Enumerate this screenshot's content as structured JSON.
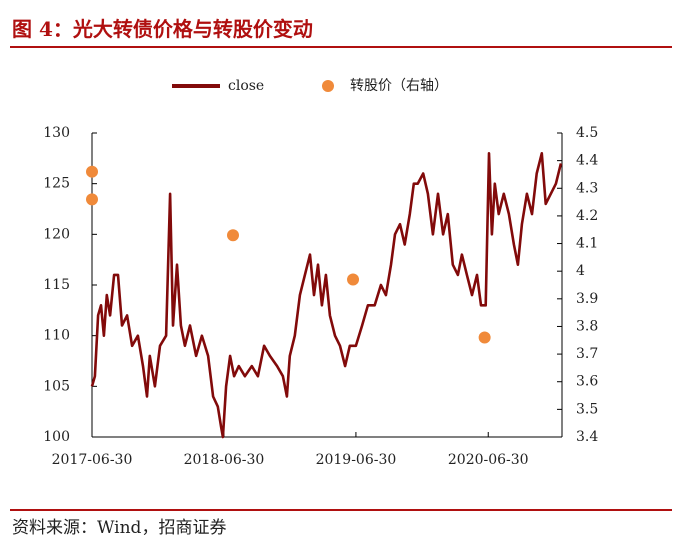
{
  "chart_data": {
    "type": "line",
    "title": "图 4：光大转债价格与转股价变动",
    "source": "资料来源：Wind，招商证券",
    "xlim": [
      "2017-06-30",
      "2021-01-20"
    ],
    "xticks": [
      "2017-06-30",
      "2018-06-30",
      "2019-06-30",
      "2020-06-30"
    ],
    "ylim": [
      100,
      130
    ],
    "yticks": [
      100,
      105,
      110,
      115,
      120,
      125,
      130
    ],
    "y2lim": [
      3.4,
      4.5
    ],
    "y2ticks": [
      3.4,
      3.5,
      3.6,
      3.7,
      3.8,
      3.9,
      4,
      4.1,
      4.2,
      4.3,
      4.4,
      4.5
    ],
    "series": [
      {
        "name": "close",
        "type": "line",
        "color": "#820a0a",
        "x": [
          "2017-06-30",
          "2017-07-08",
          "2017-07-17",
          "2017-07-25",
          "2017-08-02",
          "2017-08-10",
          "2017-08-19",
          "2017-08-30",
          "2017-09-10",
          "2017-09-21",
          "2017-10-05",
          "2017-10-19",
          "2017-11-04",
          "2017-11-18",
          "2017-11-29",
          "2017-12-07",
          "2017-12-21",
          "2018-01-04",
          "2018-01-21",
          "2018-02-01",
          "2018-02-09",
          "2018-02-20",
          "2018-03-03",
          "2018-03-14",
          "2018-03-28",
          "2018-04-14",
          "2018-04-30",
          "2018-05-17",
          "2018-05-31",
          "2018-06-13",
          "2018-06-22",
          "2018-06-27",
          "2018-07-06",
          "2018-07-17",
          "2018-07-28",
          "2018-08-10",
          "2018-08-27",
          "2018-09-15",
          "2018-10-02",
          "2018-10-19",
          "2018-11-04",
          "2018-11-24",
          "2018-12-10",
          "2018-12-21",
          "2018-12-29",
          "2019-01-12",
          "2019-01-26",
          "2019-02-09",
          "2019-02-23",
          "2019-03-06",
          "2019-03-17",
          "2019-03-28",
          "2019-04-08",
          "2019-04-19",
          "2019-05-03",
          "2019-05-17",
          "2019-05-31",
          "2019-06-13",
          "2019-06-30",
          "2019-07-17",
          "2019-08-02",
          "2019-08-21",
          "2019-09-07",
          "2019-09-21",
          "2019-10-05",
          "2019-10-16",
          "2019-10-30",
          "2019-11-12",
          "2019-11-26",
          "2019-12-07",
          "2019-12-18",
          "2020-01-02",
          "2020-01-15",
          "2020-01-29",
          "2020-02-12",
          "2020-02-26",
          "2020-03-10",
          "2020-03-24",
          "2020-04-07",
          "2020-04-18",
          "2020-05-02",
          "2020-05-16",
          "2020-05-30",
          "2020-06-10",
          "2020-06-23",
          "2020-07-02",
          "2020-07-10",
          "2020-07-18",
          "2020-07-29",
          "2020-08-12",
          "2020-08-26",
          "2020-09-09",
          "2020-09-20",
          "2020-10-01",
          "2020-10-15",
          "2020-10-29",
          "2020-11-11",
          "2020-11-25",
          "2020-12-06",
          "2020-12-20",
          "2021-01-03",
          "2021-01-17"
        ],
        "values": [
          105,
          106,
          112,
          113,
          110,
          114,
          112,
          116,
          116,
          111,
          112,
          109,
          110,
          107,
          104,
          108,
          105,
          109,
          110,
          124,
          111,
          117,
          111,
          109,
          111,
          108,
          110,
          108,
          104,
          103,
          101,
          100,
          105,
          108,
          106,
          107,
          106,
          107,
          106,
          109,
          108,
          107,
          106,
          104,
          108,
          110,
          114,
          116,
          118,
          114,
          117,
          113,
          116,
          112,
          110,
          109,
          107,
          109,
          109,
          111,
          113,
          113,
          115,
          114,
          117,
          120,
          121,
          119,
          122,
          125,
          125,
          126,
          124,
          120,
          124,
          120,
          122,
          117,
          116,
          118,
          116,
          114,
          116,
          113,
          113,
          128,
          120,
          125,
          122,
          124,
          122,
          119,
          117,
          121,
          124,
          122,
          126,
          128,
          123,
          124,
          125,
          127
        ]
      },
      {
        "name": "转股价（右轴）",
        "type": "scatter",
        "axis": "y2",
        "color": "#f08a3a",
        "x": [
          "2017-06-30",
          "2017-06-30",
          "2018-07-25",
          "2019-06-22",
          "2020-06-20"
        ],
        "values": [
          4.36,
          4.26,
          4.13,
          3.97,
          3.76
        ]
      }
    ]
  }
}
